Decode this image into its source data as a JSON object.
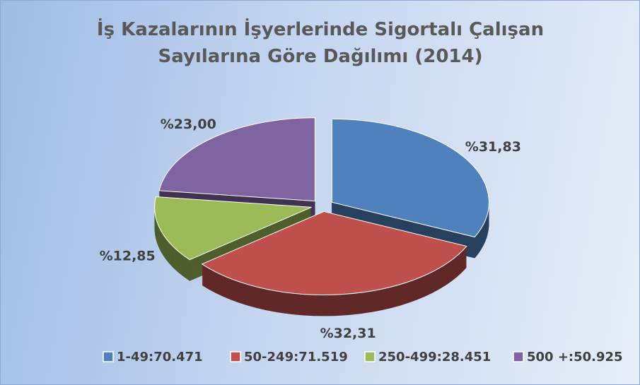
{
  "chart_data": {
    "type": "pie3d",
    "title": "İş Kazalarının İşyerlerinde Sigortalı Çalışan Sayılarına Göre Dağılımı (2014)",
    "categories": [
      "1-49:70.471",
      "50-249:71.519",
      "250-499:28.451",
      "500 +:50.925"
    ],
    "values": [
      31.83,
      32.31,
      12.85,
      23.0
    ],
    "value_labels": [
      "%31,83",
      "%32,31",
      "%12,85",
      "%23,00"
    ],
    "colors": [
      "#4f81bd",
      "#c0504d",
      "#9bbb59",
      "#8064a2"
    ],
    "legend": "bottom"
  }
}
